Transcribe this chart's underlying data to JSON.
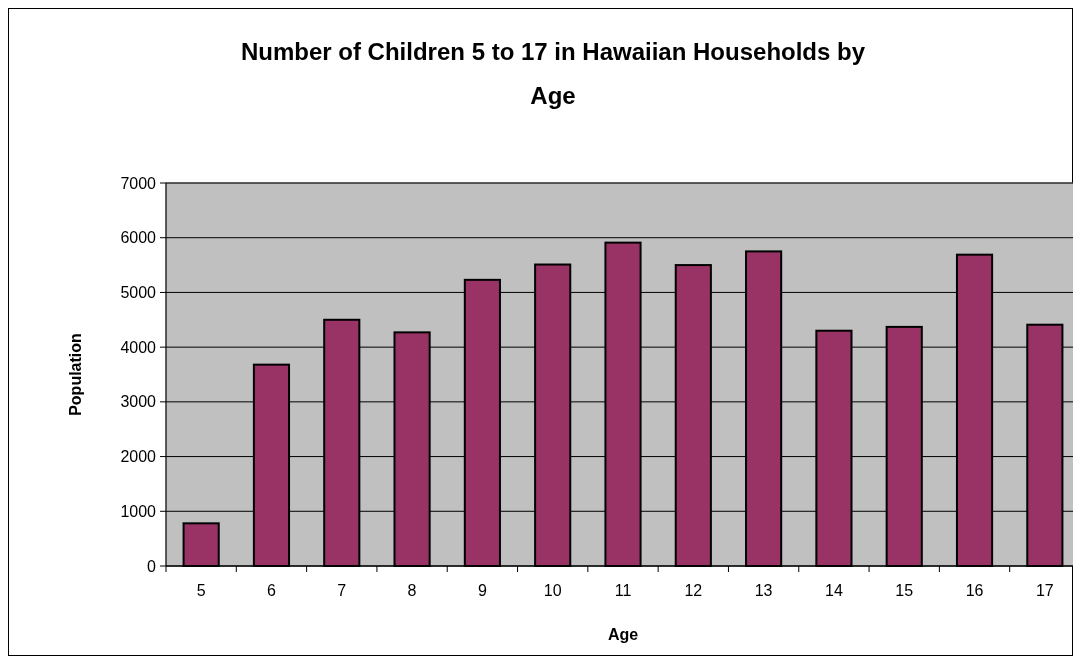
{
  "chart_data": {
    "type": "bar",
    "title": "Number of Children 5 to 17 in Hawaiian Households by Age",
    "xlabel": "Age",
    "ylabel": "Population",
    "categories": [
      "5",
      "6",
      "7",
      "8",
      "9",
      "10",
      "11",
      "12",
      "13",
      "14",
      "15",
      "16",
      "17"
    ],
    "values": [
      780,
      3680,
      4500,
      4270,
      5230,
      5510,
      5910,
      5500,
      5750,
      4300,
      4370,
      5690,
      4410
    ],
    "color": "#993366",
    "ylim": [
      0,
      7000
    ],
    "yticks": [
      0,
      1000,
      2000,
      3000,
      4000,
      5000,
      6000,
      7000
    ],
    "grid": "y"
  }
}
